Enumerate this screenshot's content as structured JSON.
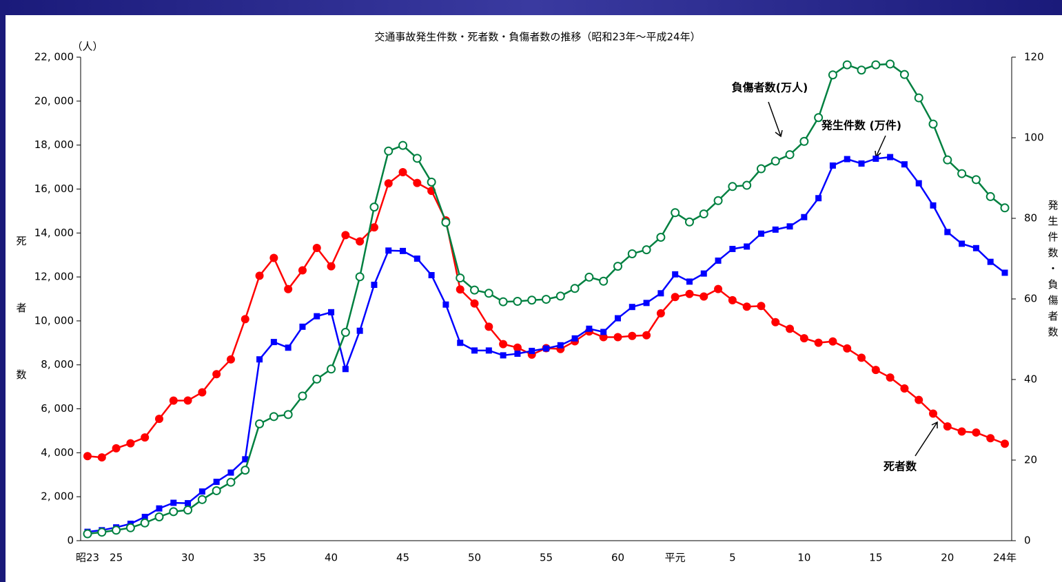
{
  "chart_data": {
    "type": "line",
    "title": "交通事故発生件数・死者数・負傷者数の推移（昭和23年～平成24年）",
    "y_label": "死者数",
    "y2_label": "発生件数・負傷者数",
    "y_unit": "（人）",
    "categories": [
      "昭23",
      null,
      "25",
      null,
      null,
      null,
      null,
      "30",
      null,
      null,
      null,
      null,
      "35",
      null,
      null,
      null,
      null,
      "40",
      null,
      null,
      null,
      null,
      "45",
      null,
      null,
      null,
      null,
      "50",
      null,
      null,
      null,
      null,
      "55",
      null,
      null,
      null,
      null,
      "60",
      null,
      null,
      null,
      "平元",
      null,
      null,
      null,
      "5",
      null,
      null,
      null,
      null,
      "10",
      null,
      null,
      null,
      null,
      "15",
      null,
      null,
      null,
      null,
      "20",
      null,
      null,
      null,
      "24年"
    ],
    "ylim": [
      0,
      22000
    ],
    "yticks": [
      0,
      {
        "value": 2000,
        "label": "2, 000"
      },
      {
        "value": 4000,
        "label": "4, 000"
      },
      {
        "value": 6000,
        "label": "6, 000"
      },
      {
        "value": 8000,
        "label": "8, 000"
      },
      {
        "value": 10000,
        "label": "10, 000"
      },
      {
        "value": 12000,
        "label": "12, 000"
      },
      {
        "value": 14000,
        "label": "14, 000"
      },
      {
        "value": 16000,
        "label": "16, 000"
      },
      {
        "value": 18000,
        "label": "18, 000"
      },
      {
        "value": 20000,
        "label": "20, 000"
      },
      {
        "value": 22000,
        "label": "22, 000"
      }
    ],
    "y2lim": [
      0,
      120
    ],
    "y2ticks": [
      0,
      20,
      40,
      60,
      80,
      100,
      120
    ],
    "grid": false,
    "series": [
      {
        "name": "死者数",
        "color": "#ff0000",
        "marker": "circle",
        "axis": "y",
        "values": [
          3848,
          3790,
          4202,
          4429,
          4696,
          5544,
          6374,
          6379,
          6751,
          7575,
          8248,
          10079,
          12055,
          12865,
          11445,
          12301,
          13318,
          12484,
          13904,
          13618,
          14256,
          16257,
          16765,
          16278,
          15918,
          14574,
          11432,
          10792,
          9734,
          8945,
          8783,
          8466,
          8760,
          8719,
          9073,
          9520,
          9262,
          9261,
          9317,
          9347,
          10344,
          11086,
          11227,
          11109,
          11451,
          10942,
          10649,
          10679,
          9942,
          9640,
          9211,
          9006,
          9066,
          8747,
          8326,
          7768,
          7425,
          6927,
          6403,
          5782,
          5197,
          4968,
          4922,
          4663,
          4411
        ]
      },
      {
        "name": "発生件数 (万件)",
        "color": "#0000ff",
        "marker": "square",
        "axis": "y2",
        "values": [
          2.2,
          2.6,
          3.3,
          4.2,
          5.9,
          8.0,
          9.4,
          9.3,
          12.2,
          14.6,
          16.9,
          20.2,
          45.0,
          49.3,
          47.9,
          53.1,
          55.7,
          56.7,
          42.6,
          52.1,
          63.5,
          72.0,
          71.9,
          70.0,
          65.9,
          58.6,
          49.1,
          47.2,
          47.2,
          46.0,
          46.4,
          47.1,
          47.7,
          48.5,
          50.2,
          52.6,
          51.8,
          55.2,
          58.0,
          59.0,
          61.4,
          66.1,
          64.3,
          66.3,
          69.5,
          72.4,
          73.0,
          76.2,
          77.2,
          78.0,
          80.3,
          85.0,
          93.1,
          94.7,
          93.6,
          94.8,
          95.2,
          93.4,
          88.7,
          83.2,
          76.6,
          73.7,
          72.6,
          69.2,
          66.5
        ]
      },
      {
        "name": "負傷者数(万人)",
        "color": "#008040",
        "marker": "open-circle",
        "axis": "y2",
        "values": [
          1.7,
          2.1,
          2.6,
          3.2,
          4.4,
          5.9,
          7.2,
          7.6,
          10.2,
          12.4,
          14.5,
          17.5,
          29.0,
          30.8,
          31.3,
          35.9,
          40.1,
          42.6,
          51.7,
          65.5,
          82.8,
          96.7,
          98.1,
          94.9,
          89.0,
          79.0,
          65.2,
          62.2,
          61.4,
          59.3,
          59.4,
          59.7,
          59.9,
          60.7,
          62.6,
          65.4,
          64.4,
          68.1,
          71.2,
          72.2,
          75.3,
          81.4,
          79.1,
          81.1,
          84.4,
          87.9,
          88.2,
          92.3,
          94.2,
          95.8,
          99.1,
          105.0,
          115.6,
          118.1,
          116.8,
          118.1,
          118.3,
          115.7,
          109.9,
          103.4,
          94.5,
          91.1,
          89.6,
          85.4,
          82.6
        ]
      }
    ]
  }
}
